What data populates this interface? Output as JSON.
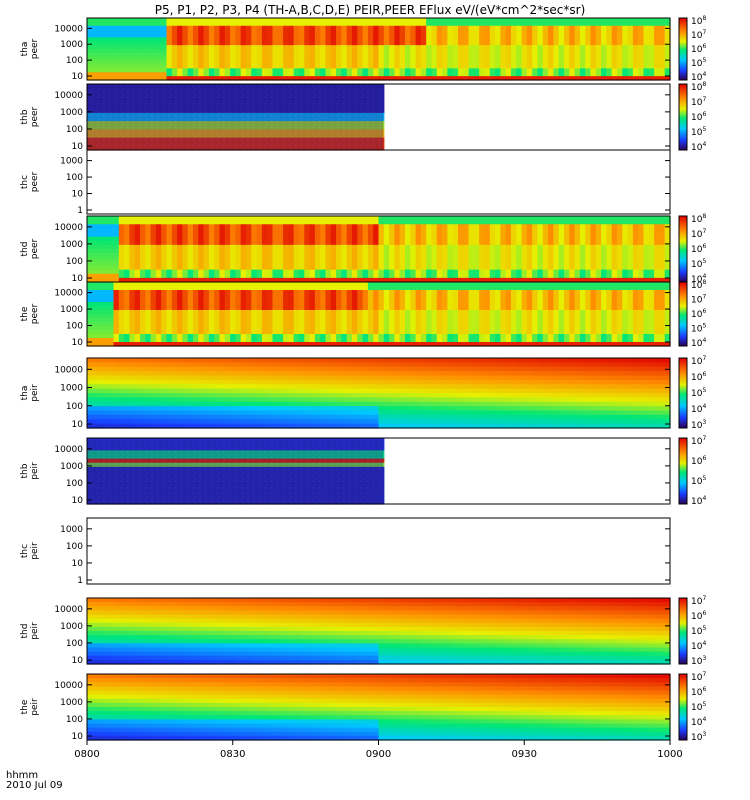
{
  "title": "P5, P1, P2, P3, P4 (TH-A,B,C,D,E) PEIR,PEER EFlux eV/(eV*cm^2*sec*sr)",
  "footer": {
    "line1": "hhmm",
    "line2": "2010 Jul 09"
  },
  "x_axis": {
    "ticks": [
      "0800",
      "0830",
      "0900",
      "0930",
      "1000"
    ],
    "range_minutes": [
      0,
      120
    ]
  },
  "chart_data": [
    {
      "type": "heatmap",
      "id": "tha-peer",
      "ylabel": [
        "tha",
        "peer"
      ],
      "y_ticks": [
        "10",
        "100",
        "1000",
        "10000"
      ],
      "colorbar_ticks": [
        "10^4",
        "10^5",
        "10^6",
        "10^7",
        "10^8"
      ],
      "data_end_minute": 120,
      "pattern": "peer-active",
      "onset_minute": 16,
      "upper_bright_until_minute": 70
    },
    {
      "type": "heatmap",
      "id": "thb-peer",
      "ylabel": [
        "thb",
        "peer"
      ],
      "y_ticks": [
        "10",
        "100",
        "1000",
        "10000"
      ],
      "colorbar_ticks": [
        "10^4",
        "10^5",
        "10^6",
        "10^7",
        "10^8"
      ],
      "data_end_minute": 61,
      "pattern": "peer-thb"
    },
    {
      "type": "heatmap",
      "id": "thc-peer",
      "ylabel": [
        "thc",
        "peer"
      ],
      "y_ticks": [
        "1",
        "10",
        "100",
        "1000"
      ],
      "colorbar_ticks": [],
      "data_end_minute": 0,
      "pattern": "empty"
    },
    {
      "type": "heatmap",
      "id": "thd-peer",
      "ylabel": [
        "thd",
        "peer"
      ],
      "y_ticks": [
        "10",
        "100",
        "1000",
        "10000"
      ],
      "colorbar_ticks": [
        "10^4",
        "10^5",
        "10^6",
        "10^7",
        "10^8"
      ],
      "data_end_minute": 120,
      "pattern": "peer-active",
      "onset_minute": 7,
      "upper_bright_until_minute": 60
    },
    {
      "type": "heatmap",
      "id": "the-peer",
      "ylabel": [
        "the",
        "peer"
      ],
      "y_ticks": [
        "10",
        "100",
        "1000",
        "10000"
      ],
      "colorbar_ticks": [
        "10^4",
        "10^5",
        "10^6",
        "10^7",
        "10^8"
      ],
      "data_end_minute": 120,
      "pattern": "peer-active",
      "onset_minute": 6,
      "upper_bright_until_minute": 58
    },
    {
      "type": "heatmap",
      "id": "tha-peir",
      "ylabel": [
        "tha",
        "peir"
      ],
      "y_ticks": [
        "10",
        "100",
        "1000",
        "10000"
      ],
      "colorbar_ticks": [
        "10^3",
        "10^4",
        "10^5",
        "10^6",
        "10^7"
      ],
      "data_end_minute": 120,
      "pattern": "peir"
    },
    {
      "type": "heatmap",
      "id": "thb-peir",
      "ylabel": [
        "thb",
        "peir"
      ],
      "y_ticks": [
        "10",
        "100",
        "1000",
        "10000"
      ],
      "colorbar_ticks": [
        "10^4",
        "10^5",
        "10^6",
        "10^7"
      ],
      "data_end_minute": 61,
      "pattern": "peir-thb"
    },
    {
      "type": "heatmap",
      "id": "thc-peir",
      "ylabel": [
        "thc",
        "peir"
      ],
      "y_ticks": [
        "1",
        "10",
        "100",
        "1000"
      ],
      "colorbar_ticks": [],
      "data_end_minute": 0,
      "pattern": "empty"
    },
    {
      "type": "heatmap",
      "id": "thd-peir",
      "ylabel": [
        "thd",
        "peir"
      ],
      "y_ticks": [
        "10",
        "100",
        "1000",
        "10000"
      ],
      "colorbar_ticks": [
        "10^3",
        "10^4",
        "10^5",
        "10^6",
        "10^7"
      ],
      "data_end_minute": 120,
      "pattern": "peir"
    },
    {
      "type": "heatmap",
      "id": "the-peir",
      "ylabel": [
        "the",
        "peir"
      ],
      "y_ticks": [
        "10",
        "100",
        "1000",
        "10000"
      ],
      "colorbar_ticks": [
        "10^3",
        "10^4",
        "10^5",
        "10^6",
        "10^7"
      ],
      "data_end_minute": 120,
      "pattern": "peir"
    }
  ]
}
